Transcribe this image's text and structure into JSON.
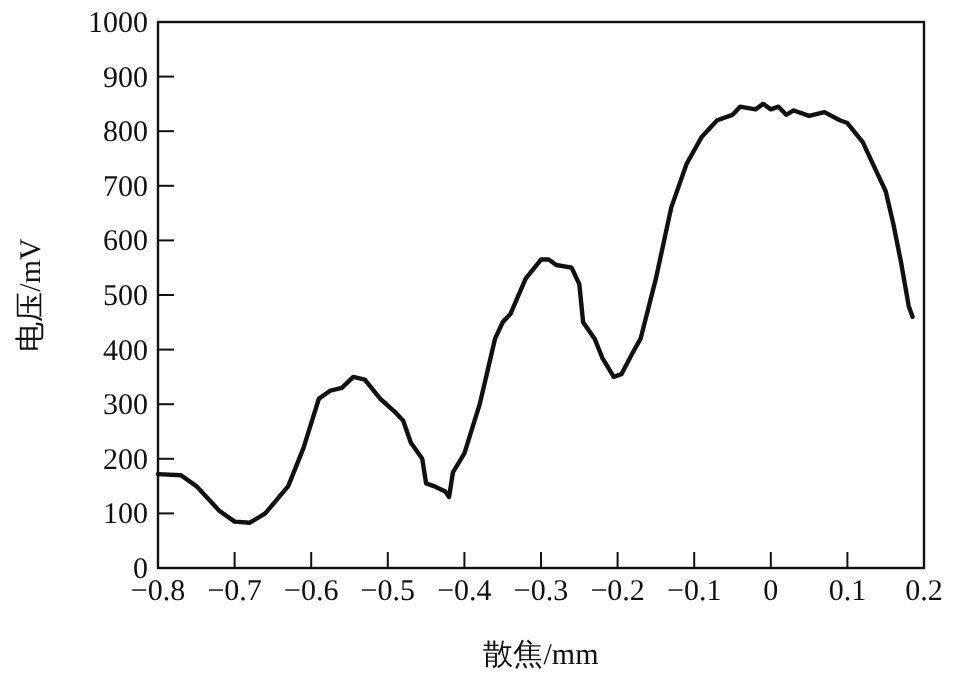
{
  "chart_data": {
    "type": "line",
    "xlabel": "散焦/mm",
    "ylabel": "电压/mV",
    "xlim": [
      -0.8,
      0.2
    ],
    "xticks": [
      -0.8,
      -0.7,
      -0.6,
      -0.5,
      -0.4,
      -0.3,
      -0.2,
      -0.1,
      0,
      0.1,
      0.2
    ],
    "ylim": [
      0,
      1000
    ],
    "yticks": [
      0,
      100,
      200,
      300,
      400,
      500,
      600,
      700,
      800,
      900,
      1000
    ],
    "grid": false,
    "marker": "none",
    "line_style": "solid",
    "series": [
      {
        "color": "#111111",
        "x": [
          -0.8,
          -0.77,
          -0.75,
          -0.72,
          -0.7,
          -0.68,
          -0.66,
          -0.63,
          -0.61,
          -0.59,
          -0.575,
          -0.56,
          -0.545,
          -0.53,
          -0.51,
          -0.49,
          -0.48,
          -0.47,
          -0.455,
          -0.45,
          -0.44,
          -0.425,
          -0.42,
          -0.415,
          -0.4,
          -0.38,
          -0.36,
          -0.35,
          -0.34,
          -0.32,
          -0.3,
          -0.29,
          -0.28,
          -0.26,
          -0.25,
          -0.245,
          -0.23,
          -0.22,
          -0.205,
          -0.195,
          -0.18,
          -0.17,
          -0.15,
          -0.13,
          -0.11,
          -0.09,
          -0.07,
          -0.05,
          -0.04,
          -0.02,
          -0.01,
          0,
          0.01,
          0.02,
          0.03,
          0.05,
          0.07,
          0.09,
          0.1,
          0.12,
          0.14,
          0.15,
          0.16,
          0.17,
          0.18,
          0.185
        ],
        "values": [
          172,
          170,
          150,
          105,
          85,
          83,
          100,
          150,
          220,
          310,
          325,
          330,
          350,
          345,
          310,
          285,
          270,
          230,
          200,
          155,
          150,
          140,
          130,
          175,
          210,
          300,
          420,
          450,
          465,
          530,
          565,
          565,
          555,
          550,
          520,
          450,
          420,
          385,
          350,
          355,
          395,
          420,
          530,
          660,
          740,
          790,
          820,
          830,
          845,
          840,
          850,
          840,
          845,
          830,
          838,
          828,
          835,
          820,
          815,
          780,
          720,
          690,
          630,
          560,
          480,
          460
        ]
      }
    ]
  }
}
